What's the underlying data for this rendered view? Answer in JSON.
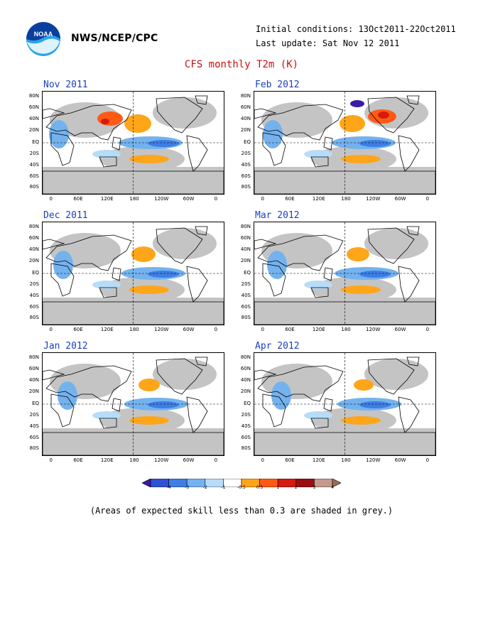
{
  "header": {
    "org": "NWS/NCEP/CPC",
    "initial": "Initial conditions: 13Oct2011-22Oct2011",
    "updated": "Last update: Sat Nov 12 2011",
    "title": "CFS monthly T2m (K)",
    "logo_text": "NOAA"
  },
  "axes": {
    "lat_labels": [
      "80N",
      "60N",
      "40N",
      "20N",
      "EQ",
      "20S",
      "40S",
      "60S",
      "80S"
    ],
    "lon_labels": [
      "0",
      "60E",
      "120E",
      "180",
      "120W",
      "60W",
      "0"
    ]
  },
  "panels": [
    {
      "title": "Nov 2011",
      "col": 0,
      "row": 0
    },
    {
      "title": "Feb 2012",
      "col": 1,
      "row": 0
    },
    {
      "title": "Dec 2011",
      "col": 0,
      "row": 1
    },
    {
      "title": "Mar 2012",
      "col": 1,
      "row": 1
    },
    {
      "title": "Jan 2012",
      "col": 0,
      "row": 2
    },
    {
      "title": "Apr 2012",
      "col": 1,
      "row": 2
    }
  ],
  "colorbar": {
    "labels": [
      "-4",
      "-3",
      "-2",
      "-1",
      "-0.5",
      "0.5",
      "1",
      "2",
      "3",
      "4"
    ],
    "colors": [
      "#3b1aa8",
      "#2f52d4",
      "#3d7ee4",
      "#74b2ee",
      "#b7dcf8",
      "#ffffff",
      "#ffa51a",
      "#ff5a14",
      "#d61a10",
      "#9a0f0f",
      "#c49a8e",
      "#9a6b5a"
    ]
  },
  "footnote": "(Areas of expected skill less than 0.3 are shaded in grey.)",
  "palette": {
    "skill_grey": "#c4c4c4",
    "title_red": "#cc1010",
    "panel_title_blue": "#1a3fbf"
  }
}
